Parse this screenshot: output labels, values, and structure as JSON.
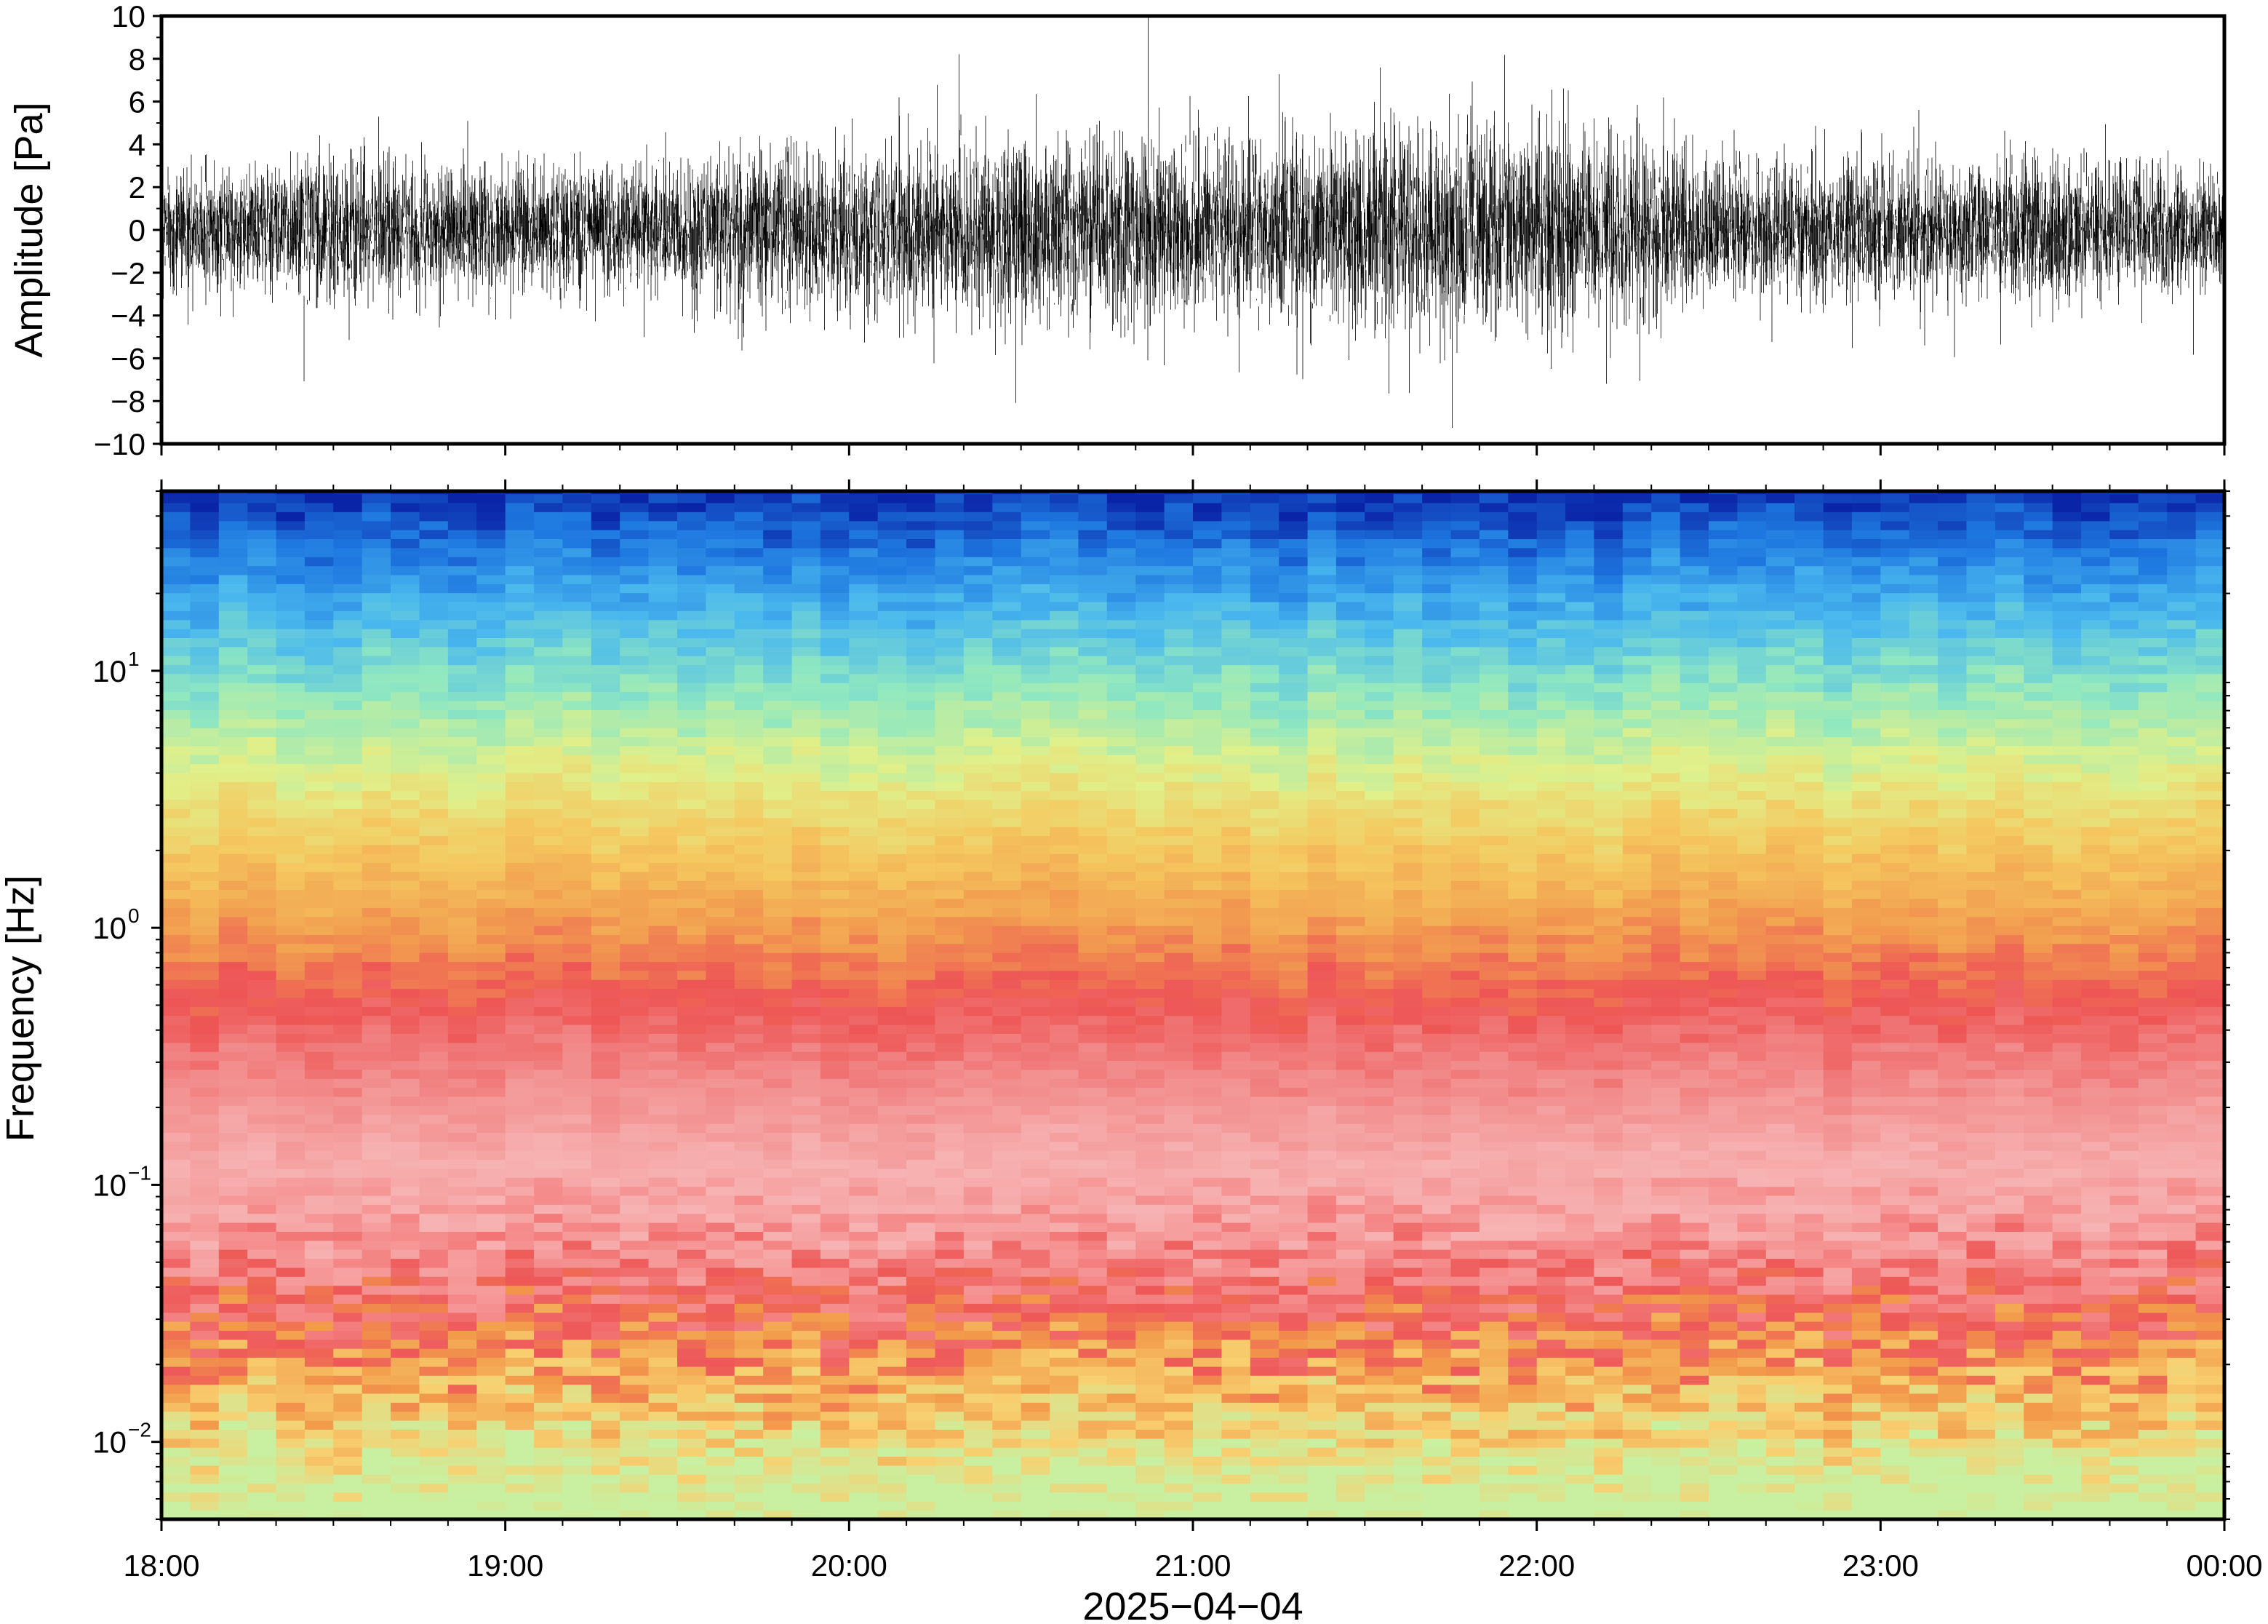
{
  "chart_data": [
    {
      "type": "line",
      "panel": "waveform",
      "ylabel": "Amplitude [Pa]",
      "ylim": [
        -10,
        10
      ],
      "yticks": [
        {
          "value": 10,
          "label": "10"
        },
        {
          "value": 8,
          "label": "8"
        },
        {
          "value": 6,
          "label": "6"
        },
        {
          "value": 4,
          "label": "4"
        },
        {
          "value": 2,
          "label": "2"
        },
        {
          "value": 0,
          "label": "0"
        },
        {
          "value": -2,
          "label": "−2"
        },
        {
          "value": -4,
          "label": "−4"
        },
        {
          "value": -6,
          "label": "−6"
        },
        {
          "value": -8,
          "label": "−8"
        },
        {
          "value": -10,
          "label": "−10"
        }
      ],
      "xlim_hours": [
        18,
        24
      ],
      "envelope": {
        "time_hours": [
          18.0,
          18.5,
          19.0,
          19.5,
          20.0,
          20.5,
          21.0,
          21.5,
          22.0,
          22.5,
          23.0,
          23.5,
          24.0
        ],
        "typical_amplitude_pa": [
          2.5,
          3.0,
          2.6,
          2.8,
          3.5,
          3.8,
          3.6,
          4.2,
          4.4,
          3.0,
          2.8,
          3.0,
          2.6
        ]
      },
      "color": "#000000"
    },
    {
      "type": "heatmap",
      "panel": "spectrogram",
      "ylabel": "Frequency [Hz]",
      "yscale": "log",
      "ylim": [
        0.005,
        50
      ],
      "yticks": [
        {
          "value": 0.01,
          "base": "10",
          "exp": "−2"
        },
        {
          "value": 0.1,
          "base": "10",
          "exp": "−1"
        },
        {
          "value": 1,
          "base": "10",
          "exp": "0"
        },
        {
          "value": 10,
          "base": "10",
          "exp": "1"
        }
      ],
      "colormap_bands": [
        {
          "freq_hz": 0.006,
          "color": "#c8f0a0"
        },
        {
          "freq_hz": 0.012,
          "color": "#f8d070"
        },
        {
          "freq_hz": 0.02,
          "color": "#f29a4a"
        },
        {
          "freq_hz": 0.03,
          "color": "#ee5858"
        },
        {
          "freq_hz": 0.05,
          "color": "#f58a8a"
        },
        {
          "freq_hz": 0.1,
          "color": "#f7b3b3"
        },
        {
          "freq_hz": 0.25,
          "color": "#f28a8a"
        },
        {
          "freq_hz": 0.5,
          "color": "#ee5555"
        },
        {
          "freq_hz": 1.0,
          "color": "#f2a050"
        },
        {
          "freq_hz": 2.0,
          "color": "#f5c860"
        },
        {
          "freq_hz": 4.0,
          "color": "#e0f08a"
        },
        {
          "freq_hz": 8.0,
          "color": "#90e8c0"
        },
        {
          "freq_hz": 16.0,
          "color": "#4ab8ee"
        },
        {
          "freq_hz": 30.0,
          "color": "#1e78e0"
        },
        {
          "freq_hz": 50.0,
          "color": "#0a24a8"
        }
      ],
      "xlim_hours": [
        18,
        24
      ]
    }
  ],
  "xaxis": {
    "ticks": [
      {
        "hour": 18,
        "label": "18:00"
      },
      {
        "hour": 19,
        "label": "19:00"
      },
      {
        "hour": 20,
        "label": "20:00"
      },
      {
        "hour": 21,
        "label": "21:00"
      },
      {
        "hour": 22,
        "label": "22:00"
      },
      {
        "hour": 23,
        "label": "23:00"
      },
      {
        "hour": 24,
        "label": "00:00"
      }
    ],
    "minor_tick_minutes": 10,
    "date_label": "2025−04−04"
  }
}
